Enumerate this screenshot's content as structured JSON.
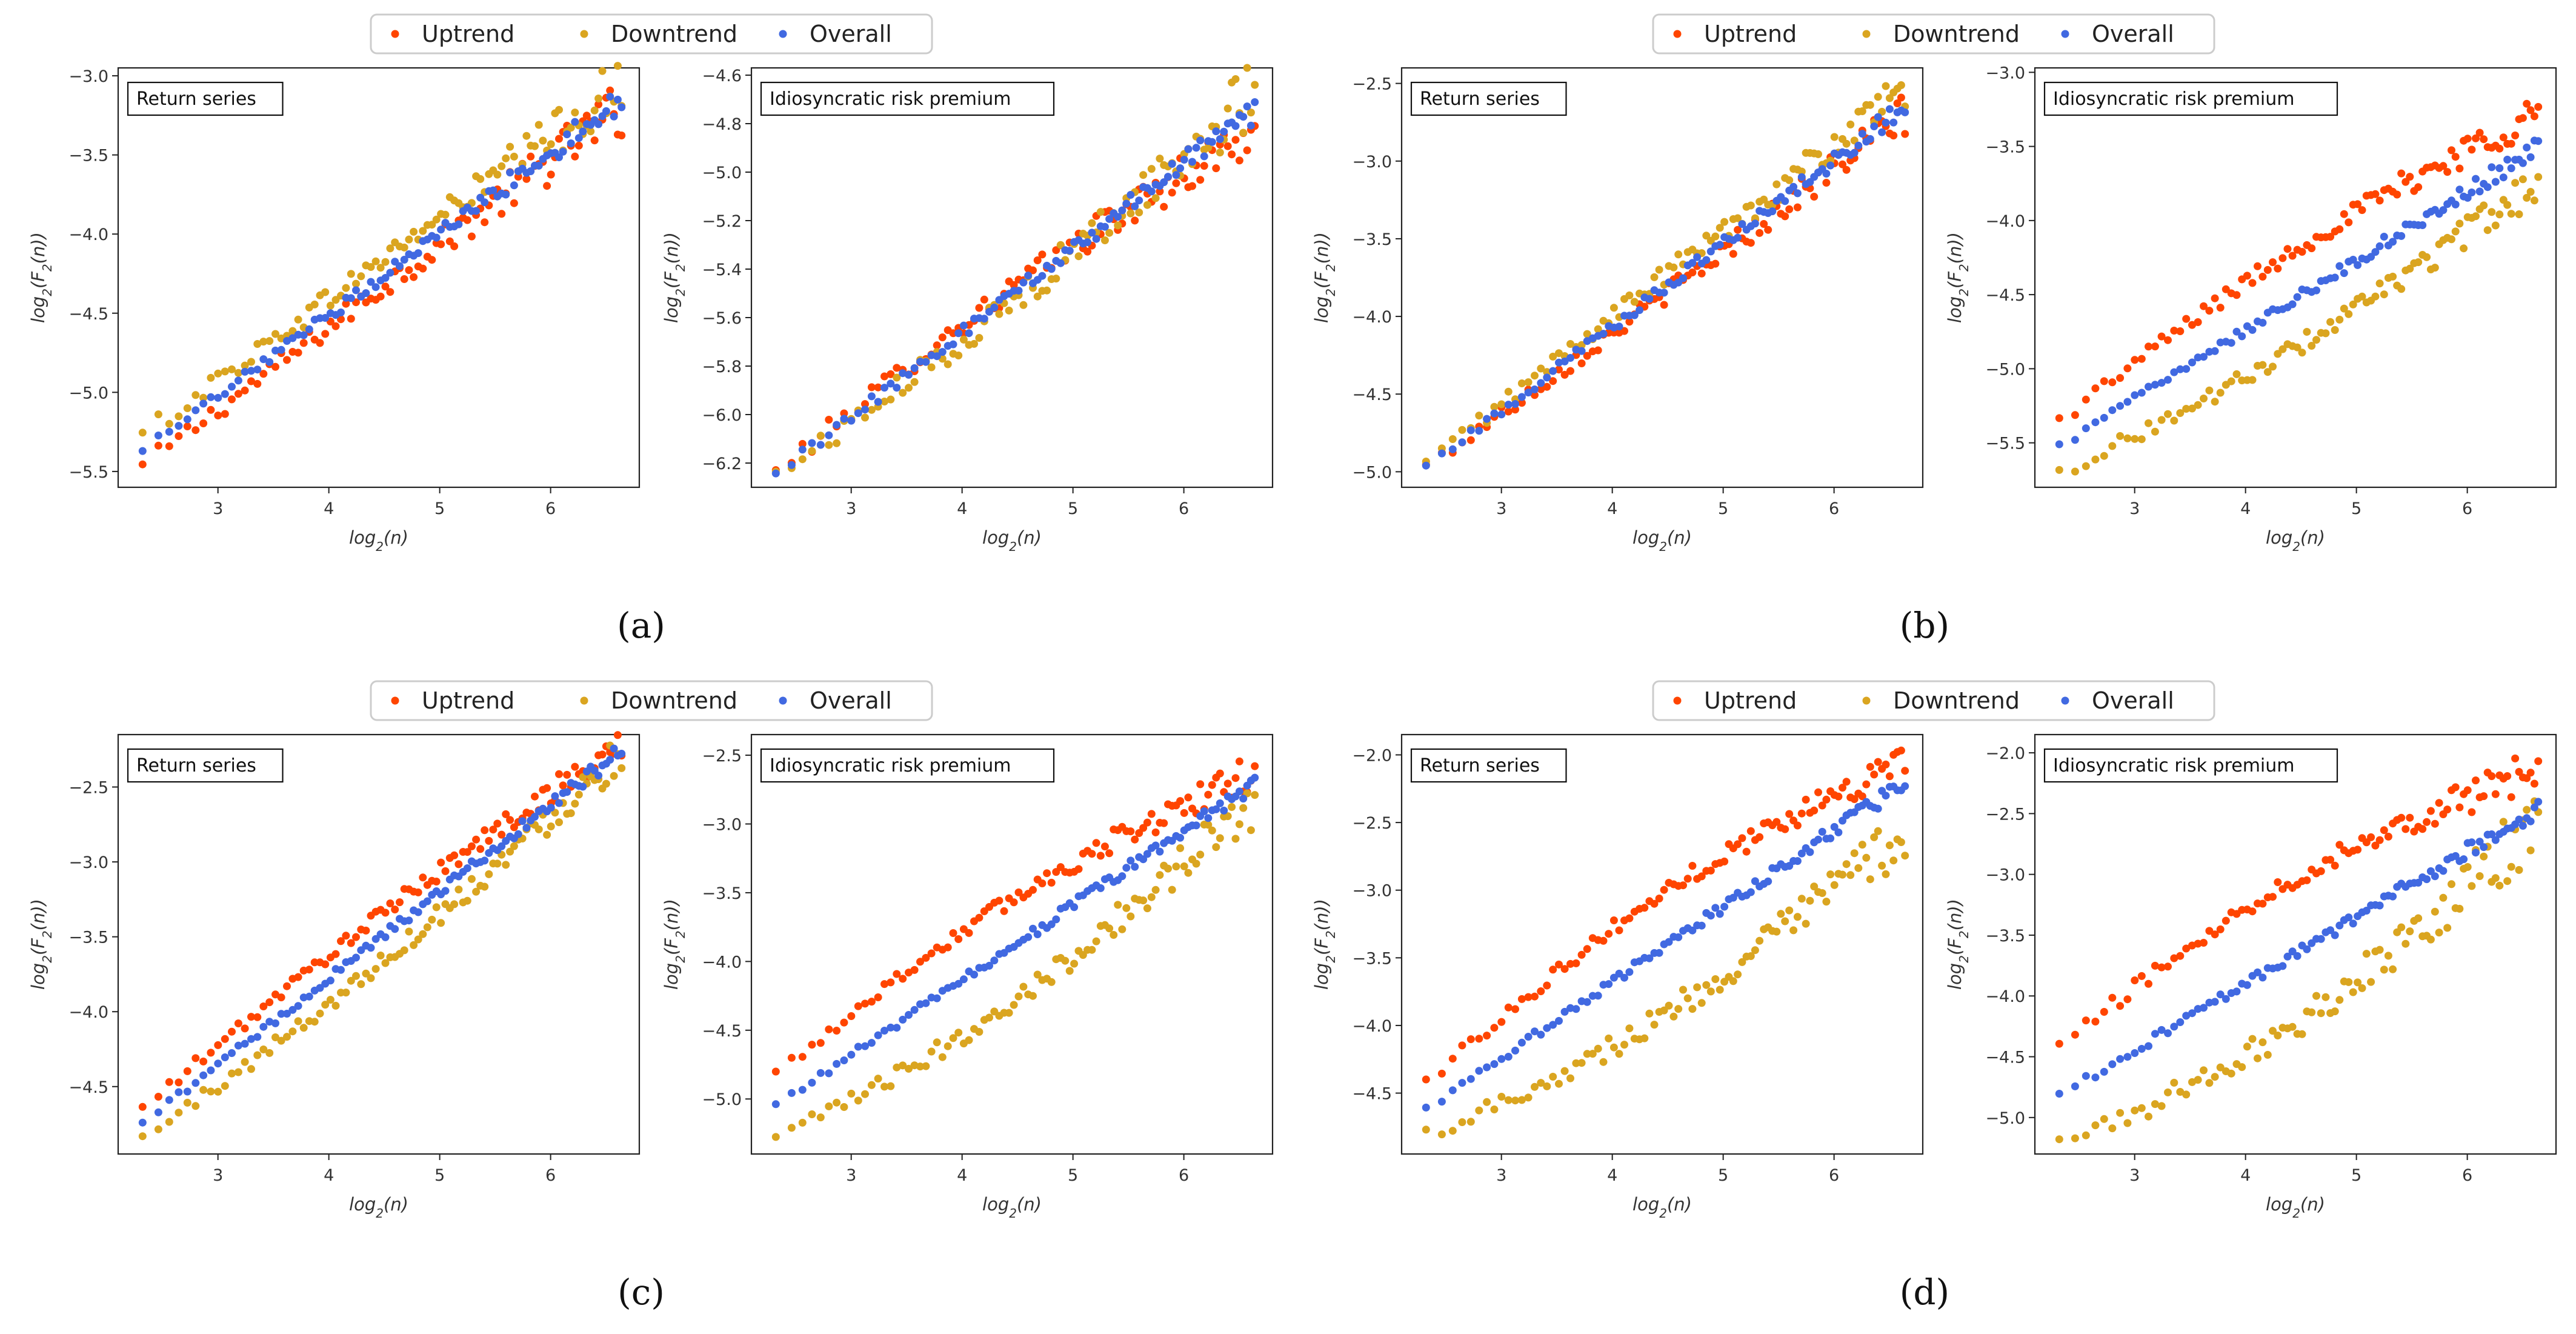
{
  "legend": {
    "items": [
      {
        "label": "Uptrend",
        "color": "#FF4500"
      },
      {
        "label": "Downtrend",
        "color": "#DAA520"
      },
      {
        "label": "Overall",
        "color": "#4169E1"
      }
    ]
  },
  "captions": [
    "(a)",
    "(b)",
    "(c)",
    "(d)"
  ],
  "chart_data": [
    {
      "type": "scatter",
      "figure": "(a)",
      "title": "Return series",
      "xlabel": "log_2(n)",
      "ylabel": "log_2(F_2(n))",
      "xlim": [
        2.1,
        6.8
      ],
      "ylim": [
        -5.6,
        -2.95
      ],
      "xticks": [
        3,
        4,
        5,
        6
      ],
      "yticks": [
        -5.5,
        -5.0,
        -4.5,
        -4.0,
        -3.5,
        -3.0
      ],
      "series": [
        {
          "name": "Uptrend",
          "start": -5.47,
          "end": -3.2,
          "spread": 0.06,
          "offset": 0.0,
          "noise_growth": 2.2
        },
        {
          "name": "Downtrend",
          "start": -5.27,
          "end": -3.05,
          "spread": 0.06,
          "offset": 0.0,
          "noise_growth": 2.2
        },
        {
          "name": "Overall",
          "start": -5.38,
          "end": -3.15,
          "spread": 0.035,
          "offset": 0.0,
          "noise_growth": 1.6
        }
      ]
    },
    {
      "type": "scatter",
      "figure": "(a)",
      "title": "Idiosyncratic risk premium",
      "xlabel": "log_2(n)",
      "ylabel": "log_2(F_2(n))",
      "xlim": [
        2.1,
        6.8
      ],
      "ylim": [
        -6.3,
        -4.57
      ],
      "xticks": [
        3,
        4,
        5,
        6
      ],
      "yticks": [
        -6.2,
        -6.0,
        -5.8,
        -5.6,
        -5.4,
        -5.2,
        -5.0,
        -4.8,
        -4.6
      ],
      "series": [
        {
          "name": "Uptrend",
          "start": -6.24,
          "end": -4.82,
          "spread": 0.04,
          "offset": 0.06,
          "noise_growth": 1.8
        },
        {
          "name": "Downtrend",
          "start": -6.25,
          "end": -4.68,
          "spread": 0.05,
          "offset": -0.06,
          "noise_growth": 1.8
        },
        {
          "name": "Overall",
          "start": -6.25,
          "end": -4.74,
          "spread": 0.025,
          "offset": 0.0,
          "noise_growth": 1.4
        }
      ]
    },
    {
      "type": "scatter",
      "figure": "(b)",
      "title": "Return series",
      "xlabel": "log_2(n)",
      "ylabel": "log_2(F_2(n))",
      "xlim": [
        2.1,
        6.8
      ],
      "ylim": [
        -5.1,
        -2.4
      ],
      "xticks": [
        3,
        4,
        5,
        6
      ],
      "yticks": [
        -5.0,
        -4.5,
        -4.0,
        -3.5,
        -3.0,
        -2.5
      ],
      "series": [
        {
          "name": "Uptrend",
          "start": -4.97,
          "end": -2.7,
          "spread": 0.05,
          "offset": -0.02,
          "noise_growth": 1.8
        },
        {
          "name": "Downtrend",
          "start": -4.95,
          "end": -2.55,
          "spread": 0.05,
          "offset": 0.02,
          "noise_growth": 1.8
        },
        {
          "name": "Overall",
          "start": -4.97,
          "end": -2.65,
          "spread": 0.03,
          "offset": 0.0,
          "noise_growth": 1.4
        }
      ]
    },
    {
      "type": "scatter",
      "figure": "(b)",
      "title": "Idiosyncratic risk premium",
      "xlabel": "log_2(n)",
      "ylabel": "log_2(F_2(n))",
      "xlim": [
        2.1,
        6.8
      ],
      "ylim": [
        -5.8,
        -2.97
      ],
      "xticks": [
        3,
        4,
        5,
        6
      ],
      "yticks": [
        -5.5,
        -5.0,
        -4.5,
        -4.0,
        -3.5,
        -3.0
      ],
      "series": [
        {
          "name": "Uptrend",
          "start": -5.35,
          "end": -3.25,
          "spread": 0.05,
          "offset": 0.12,
          "noise_growth": 1.8
        },
        {
          "name": "Downtrend",
          "start": -5.7,
          "end": -3.75,
          "spread": 0.05,
          "offset": -0.12,
          "noise_growth": 1.8
        },
        {
          "name": "Overall",
          "start": -5.52,
          "end": -3.5,
          "spread": 0.03,
          "offset": 0.0,
          "noise_growth": 1.4
        }
      ]
    },
    {
      "type": "scatter",
      "figure": "(c)",
      "title": "Return series",
      "xlabel": "log_2(n)",
      "ylabel": "log_2(F_2(n))",
      "xlim": [
        2.1,
        6.8
      ],
      "ylim": [
        -4.95,
        -2.15
      ],
      "xticks": [
        3,
        4,
        5,
        6
      ],
      "yticks": [
        -4.5,
        -4.0,
        -3.5,
        -3.0,
        -2.5
      ],
      "series": [
        {
          "name": "Uptrend",
          "start": -4.65,
          "end": -2.2,
          "spread": 0.04,
          "offset": 0.08,
          "noise_growth": 1.6
        },
        {
          "name": "Downtrend",
          "start": -4.85,
          "end": -2.28,
          "spread": 0.05,
          "offset": -0.1,
          "noise_growth": 1.8
        },
        {
          "name": "Overall",
          "start": -4.75,
          "end": -2.25,
          "spread": 0.025,
          "offset": 0.0,
          "noise_growth": 1.3
        }
      ]
    },
    {
      "type": "scatter",
      "figure": "(c)",
      "title": "Idiosyncratic risk premium",
      "xlabel": "log_2(n)",
      "ylabel": "log_2(F_2(n))",
      "xlim": [
        2.1,
        6.8
      ],
      "ylim": [
        -5.4,
        -2.35
      ],
      "xticks": [
        3,
        4,
        5,
        6
      ],
      "yticks": [
        -5.0,
        -4.5,
        -4.0,
        -3.5,
        -3.0,
        -2.5
      ],
      "series": [
        {
          "name": "Uptrend",
          "start": -4.82,
          "end": -2.6,
          "spread": 0.05,
          "offset": 0.18,
          "noise_growth": 1.8
        },
        {
          "name": "Downtrend",
          "start": -5.3,
          "end": -2.85,
          "spread": 0.06,
          "offset": -0.2,
          "noise_growth": 2.0
        },
        {
          "name": "Overall",
          "start": -5.05,
          "end": -2.7,
          "spread": 0.03,
          "offset": 0.0,
          "noise_growth": 1.3
        }
      ]
    },
    {
      "type": "scatter",
      "figure": "(d)",
      "title": "Return series",
      "xlabel": "log_2(n)",
      "ylabel": "log_2(F_2(n))",
      "xlim": [
        2.1,
        6.8
      ],
      "ylim": [
        -4.95,
        -1.85
      ],
      "xticks": [
        3,
        4,
        5,
        6
      ],
      "yticks": [
        -4.5,
        -4.0,
        -3.5,
        -3.0,
        -2.5,
        -2.0
      ],
      "series": [
        {
          "name": "Uptrend",
          "start": -4.42,
          "end": -2.0,
          "spread": 0.05,
          "offset": 0.2,
          "noise_growth": 1.8
        },
        {
          "name": "Downtrend",
          "start": -4.8,
          "end": -2.6,
          "spread": 0.07,
          "offset": -0.22,
          "noise_growth": 2.2
        },
        {
          "name": "Overall",
          "start": -4.62,
          "end": -2.2,
          "spread": 0.03,
          "offset": 0.0,
          "noise_growth": 1.3
        }
      ]
    },
    {
      "type": "scatter",
      "figure": "(d)",
      "title": "Idiosyncratic risk premium",
      "xlabel": "log_2(n)",
      "ylabel": "log_2(F_2(n))",
      "xlim": [
        2.1,
        6.8
      ],
      "ylim": [
        -5.3,
        -1.85
      ],
      "xticks": [
        3,
        4,
        5,
        6
      ],
      "yticks": [
        -5.0,
        -4.5,
        -4.0,
        -3.5,
        -3.0,
        -2.5,
        -2.0
      ],
      "series": [
        {
          "name": "Uptrend",
          "start": -4.42,
          "end": -2.1,
          "spread": 0.06,
          "offset": 0.25,
          "noise_growth": 2.0
        },
        {
          "name": "Downtrend",
          "start": -5.22,
          "end": -2.6,
          "spread": 0.09,
          "offset": -0.3,
          "noise_growth": 2.4
        },
        {
          "name": "Overall",
          "start": -4.82,
          "end": -2.45,
          "spread": 0.035,
          "offset": 0.0,
          "noise_growth": 1.4
        }
      ]
    }
  ]
}
